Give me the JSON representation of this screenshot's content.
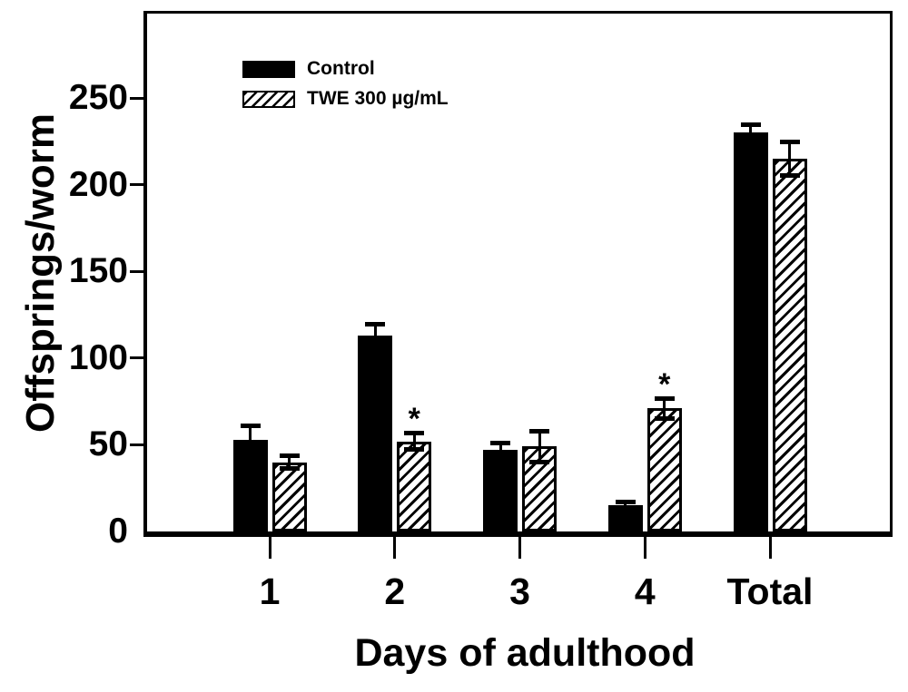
{
  "chart_data": {
    "type": "bar",
    "title": "",
    "xlabel": "Days of adulthood",
    "ylabel": "Offsprings/worm",
    "categories": [
      "1",
      "2",
      "3",
      "4",
      "Total"
    ],
    "series": [
      {
        "name": "Control",
        "style": "solid-black",
        "values": [
          53,
          113,
          47,
          15,
          230
        ],
        "errors": [
          8,
          7,
          4,
          2,
          5
        ],
        "significance": [
          "",
          "",
          "",
          "",
          ""
        ]
      },
      {
        "name": "TWE 300 µg/mL",
        "style": "hatched",
        "values": [
          40,
          52,
          49,
          71,
          215
        ],
        "errors": [
          4,
          5,
          9,
          6,
          10
        ],
        "significance": [
          "",
          "*",
          "",
          "*",
          ""
        ]
      }
    ],
    "yticks": [
      0,
      50,
      100,
      150,
      200,
      250
    ],
    "ylim": [
      0,
      300
    ],
    "grid": false,
    "legend_position": "top-left",
    "error_bars": true,
    "significance_marker": "*",
    "colors": {
      "foreground": "#000000",
      "background": "#ffffff"
    }
  }
}
